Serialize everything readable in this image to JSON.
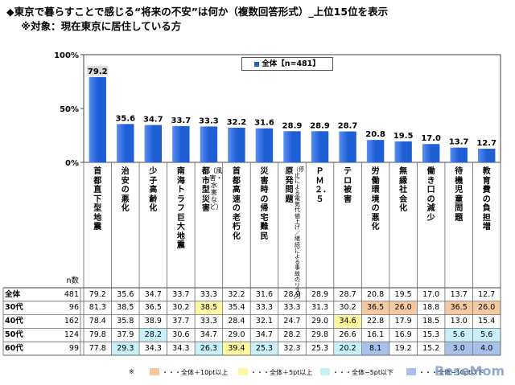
{
  "title": "◆東京で暮らすことで感じる“将来の不安”は何か（複数回答形式）_上位15位を表示",
  "subtitle": "※対象：現在東京に居住している方",
  "chart_data": {
    "type": "bar",
    "legend": "全体【n=481】",
    "legend_placement": "top-center",
    "y_ticks": [
      "100%",
      "50%",
      "0%"
    ],
    "ylim": [
      0,
      100
    ],
    "grid": false,
    "categories": [
      {
        "label": "首都直下型地震",
        "sub": ""
      },
      {
        "label": "治安の悪化",
        "sub": ""
      },
      {
        "label": "少子高齢化",
        "sub": ""
      },
      {
        "label": "南海トラフ巨大地震",
        "sub": ""
      },
      {
        "label": "都市型災害",
        "sub": "（風害・水害など）"
      },
      {
        "label": "首都高速の老朽化",
        "sub": ""
      },
      {
        "label": "災害時の帰宅難民",
        "sub": ""
      },
      {
        "label": "原発問題",
        "sub": "（停止による電気代値上げ／継続による事故のリスク）"
      },
      {
        "label": "ＰＭ２．５",
        "sub": ""
      },
      {
        "label": "テロ被害",
        "sub": ""
      },
      {
        "label": "労働環境の悪化",
        "sub": ""
      },
      {
        "label": "無縁社会化",
        "sub": ""
      },
      {
        "label": "働き口の減少",
        "sub": ""
      },
      {
        "label": "待機児童問題",
        "sub": ""
      },
      {
        "label": "教育費の負担増",
        "sub": ""
      }
    ],
    "series": [
      {
        "name": "全体",
        "values": [
          79.2,
          35.6,
          34.7,
          33.7,
          33.3,
          32.2,
          31.6,
          28.9,
          28.9,
          28.7,
          20.8,
          19.5,
          17.0,
          13.7,
          12.7
        ]
      }
    ],
    "table": {
      "n_header": "n数",
      "rows": [
        {
          "label": "全体",
          "n": "481",
          "values": [
            "79.2",
            "35.6",
            "34.7",
            "33.7",
            "33.3",
            "32.2",
            "31.6",
            "28.9",
            "28.9",
            "28.7",
            "20.8",
            "19.5",
            "17.0",
            "13.7",
            "12.7"
          ],
          "highlights": [
            "",
            "",
            "",
            "",
            "",
            "",
            "",
            "",
            "",
            "",
            "",
            "",
            "",
            "",
            ""
          ]
        },
        {
          "label": "30代",
          "n": "96",
          "values": [
            "81.3",
            "38.5",
            "36.5",
            "30.2",
            "38.5",
            "35.4",
            "33.3",
            "33.3",
            "31.3",
            "30.2",
            "36.5",
            "26.0",
            "18.8",
            "36.5",
            "26.0"
          ],
          "highlights": [
            "",
            "",
            "",
            "",
            "y",
            "",
            "",
            "",
            "",
            "",
            "o",
            "o",
            "",
            "o",
            "o"
          ]
        },
        {
          "label": "40代",
          "n": "162",
          "values": [
            "78.4",
            "35.8",
            "38.9",
            "37.7",
            "33.3",
            "28.4",
            "32.1",
            "24.7",
            "29.0",
            "34.6",
            "22.8",
            "17.9",
            "18.5",
            "13.0",
            "15.4"
          ],
          "highlights": [
            "",
            "",
            "",
            "",
            "",
            "",
            "",
            "",
            "",
            "y",
            "",
            "",
            "",
            "",
            ""
          ]
        },
        {
          "label": "50代",
          "n": "124",
          "values": [
            "79.8",
            "37.9",
            "28.2",
            "30.6",
            "34.7",
            "29.0",
            "34.7",
            "28.2",
            "29.8",
            "26.6",
            "16.1",
            "16.9",
            "15.3",
            "5.6",
            "5.6"
          ],
          "highlights": [
            "",
            "",
            "c",
            "",
            "",
            "",
            "",
            "",
            "",
            "",
            "",
            "",
            "",
            "c",
            "c"
          ]
        },
        {
          "label": "60代",
          "n": "99",
          "values": [
            "77.8",
            "29.3",
            "34.3",
            "34.3",
            "26.3",
            "39.4",
            "25.3",
            "32.3",
            "25.3",
            "20.2",
            "8.1",
            "19.2",
            "15.2",
            "3.0",
            "4.0"
          ],
          "highlights": [
            "",
            "c",
            "",
            "",
            "c",
            "y",
            "c",
            "",
            "",
            "c",
            "b",
            "",
            "",
            "b",
            "b"
          ]
        }
      ]
    },
    "notes": [
      {
        "marker": "※",
        "label": "・・・全体＋10pt以上",
        "color": "#f6c8a0"
      },
      {
        "label": "・・・全体＋5pt以上",
        "color": "#fff6a0"
      },
      {
        "label": "・・・全体−5pt以下",
        "color": "#c8f0f8"
      },
      {
        "label": "・・・全体−10pt以下",
        "color": "#a8c0ec"
      }
    ]
  },
  "colors": {
    "bar": "#1f5fd6",
    "bar_top": "#5b8ef0",
    "highlight_orange": "#f6c8a0",
    "highlight_yellow": "#fff6a0",
    "highlight_cyan": "#c8f0f8",
    "highlight_blue": "#a8c0ec"
  },
  "watermark": "ReseMom"
}
